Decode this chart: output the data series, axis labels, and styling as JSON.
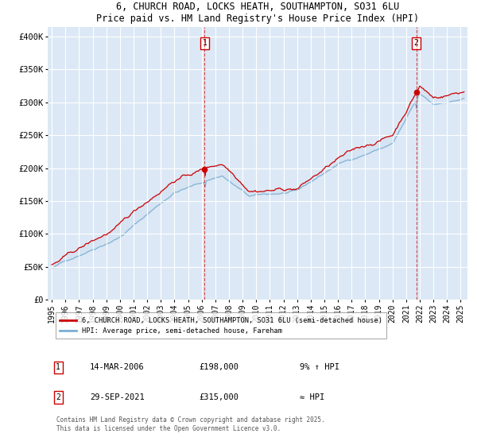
{
  "title1": "6, CHURCH ROAD, LOCKS HEATH, SOUTHAMPTON, SO31 6LU",
  "title2": "Price paid vs. HM Land Registry's House Price Index (HPI)",
  "ylabel_ticks": [
    "£0",
    "£50K",
    "£100K",
    "£150K",
    "£200K",
    "£250K",
    "£300K",
    "£350K",
    "£400K"
  ],
  "ytick_vals": [
    0,
    50000,
    100000,
    150000,
    200000,
    250000,
    300000,
    350000,
    400000
  ],
  "ylim": [
    0,
    415000
  ],
  "xlim_start": 1994.7,
  "xlim_end": 2025.5,
  "xticks": [
    1995,
    1996,
    1997,
    1998,
    1999,
    2000,
    2001,
    2002,
    2003,
    2004,
    2005,
    2006,
    2007,
    2008,
    2009,
    2010,
    2011,
    2012,
    2013,
    2014,
    2015,
    2016,
    2017,
    2018,
    2019,
    2020,
    2021,
    2022,
    2023,
    2024,
    2025
  ],
  "bg_color": "#dce8f5",
  "grid_color": "#ffffff",
  "line1_color": "#cc0000",
  "line2_color": "#7bafd4",
  "fill_color": "#c5d8ee",
  "marker1_year": 2006.21,
  "marker1_val": 198000,
  "marker2_year": 2021.75,
  "marker2_val": 315000,
  "legend_line1": "6, CHURCH ROAD, LOCKS HEATH, SOUTHAMPTON, SO31 6LU (semi-detached house)",
  "legend_line2": "HPI: Average price, semi-detached house, Fareham",
  "annot1_label": "1",
  "annot1_date": "14-MAR-2006",
  "annot1_price": "£198,000",
  "annot1_hpi": "9% ↑ HPI",
  "annot2_label": "2",
  "annot2_date": "29-SEP-2021",
  "annot2_price": "£315,000",
  "annot2_hpi": "≈ HPI",
  "footer": "Contains HM Land Registry data © Crown copyright and database right 2025.\nThis data is licensed under the Open Government Licence v3.0."
}
